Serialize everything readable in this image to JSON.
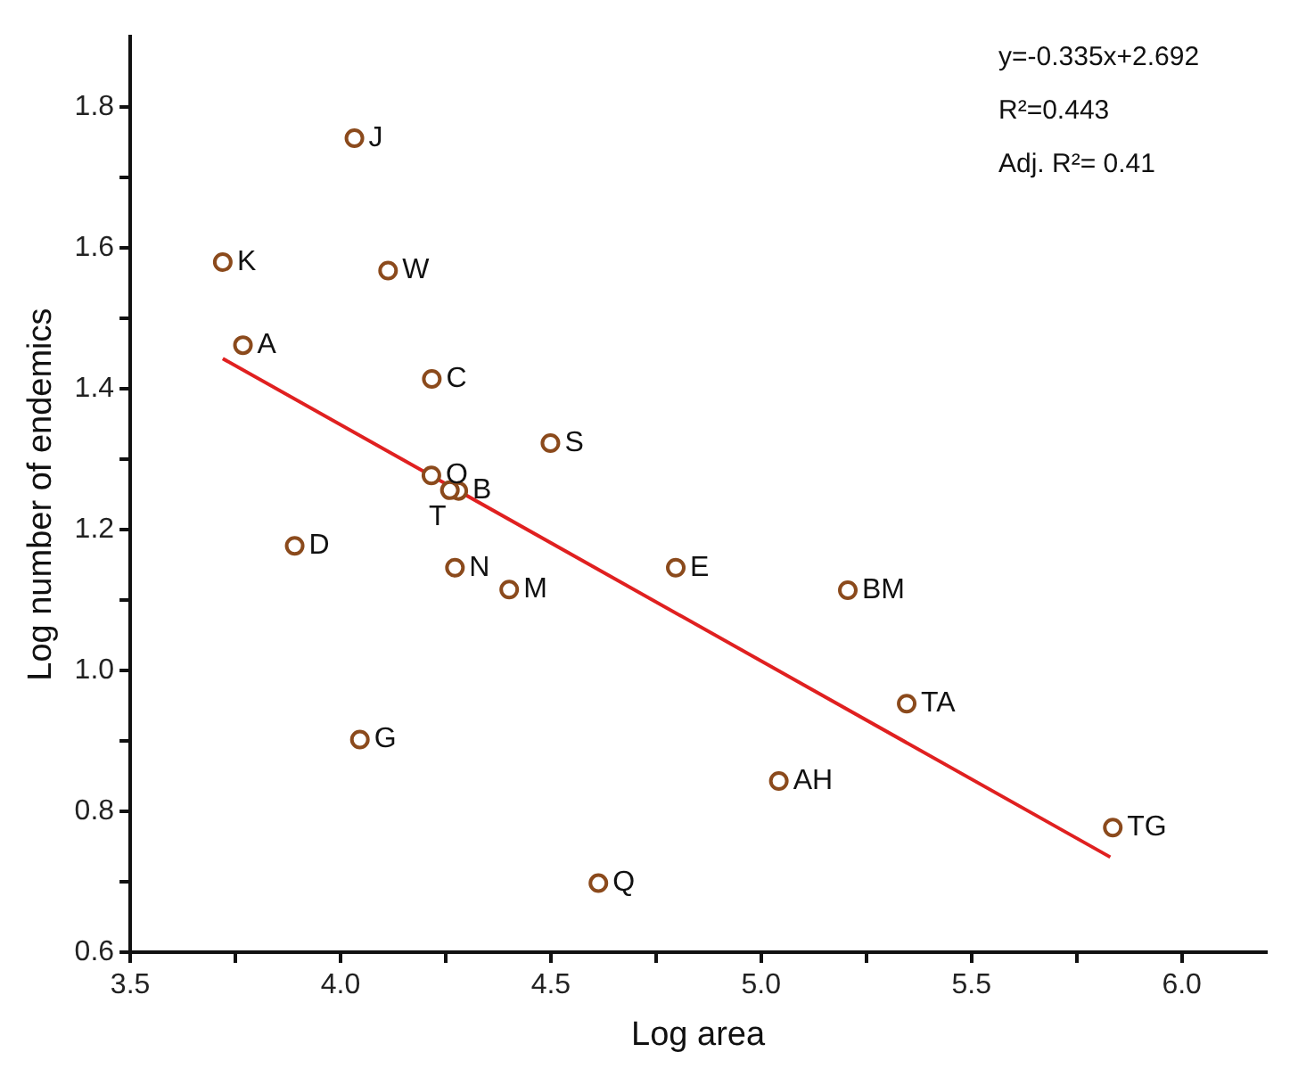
{
  "chart_data": {
    "type": "scatter",
    "xlabel": "Log area",
    "ylabel": "Log number of endemics",
    "xlim": [
      3.5,
      6.2
    ],
    "xticks": [
      3.5,
      {
        "value": 3.75,
        "label": null
      },
      {
        "value": 4,
        "label": "4.0"
      },
      {
        "value": 4.25,
        "label": null
      },
      4.5,
      {
        "value": 4.75,
        "label": null
      },
      {
        "value": 5,
        "label": "5.0"
      },
      {
        "value": 5.25,
        "label": null
      },
      5.5,
      {
        "value": 5.75,
        "label": null
      },
      {
        "value": 6,
        "label": "6.0"
      }
    ],
    "ylim": [
      0.6,
      1.9
    ],
    "yticks": [
      0.6,
      {
        "value": 0.7,
        "label": null
      },
      0.8,
      {
        "value": 0.9,
        "label": null
      },
      {
        "value": 1,
        "label": "1.0"
      },
      {
        "value": 1.1,
        "label": null
      },
      1.2,
      {
        "value": 1.3,
        "label": null
      },
      1.4,
      {
        "value": 1.5,
        "label": null
      },
      1.6,
      {
        "value": 1.7,
        "label": null
      },
      1.8
    ],
    "grid": false,
    "legend": false,
    "marker": "circle",
    "series": [
      {
        "color": "#8b4a1c",
        "x": [
          4.033,
          3.72,
          4.113,
          3.768,
          4.217,
          4.499,
          4.216,
          4.28,
          4.26,
          3.891,
          4.272,
          4.401,
          4.797,
          5.206,
          5.346,
          4.046,
          5.042,
          5.836,
          4.613
        ],
        "values": [
          1.756,
          1.58,
          1.568,
          1.462,
          1.414,
          1.323,
          1.277,
          1.255,
          1.256,
          1.177,
          1.146,
          1.115,
          1.146,
          1.114,
          0.953,
          0.902,
          0.843,
          0.777,
          0.698
        ]
      },
      {
        "type": "line",
        "color": "#e02020",
        "marker": "none",
        "line_style": "solid",
        "x": [
          3.72,
          5.83
        ],
        "values": [
          1.443,
          0.735
        ]
      }
    ],
    "annotations": [
      "y=-0.335x+2.692",
      "R²=0.443",
      "Adj. R²= 0.41",
      {
        "text": "J",
        "x": 4.033,
        "y": 1.756
      },
      {
        "text": "K",
        "x": 3.72,
        "y": 1.58
      },
      {
        "text": "W",
        "x": 4.113,
        "y": 1.568
      },
      {
        "text": "A",
        "x": 3.768,
        "y": 1.462
      },
      {
        "text": "C",
        "x": 4.217,
        "y": 1.414
      },
      {
        "text": "S",
        "x": 4.499,
        "y": 1.323
      },
      {
        "text": "O",
        "x": 4.216,
        "y": 1.277
      },
      {
        "text": "B",
        "x": 4.28,
        "y": 1.255
      },
      {
        "text": "T",
        "x": 4.26,
        "y": 1.256
      },
      {
        "text": "D",
        "x": 3.891,
        "y": 1.177
      },
      {
        "text": "N",
        "x": 4.272,
        "y": 1.146
      },
      {
        "text": "M",
        "x": 4.401,
        "y": 1.115
      },
      {
        "text": "E",
        "x": 4.797,
        "y": 1.146
      },
      {
        "text": "BM",
        "x": 5.206,
        "y": 1.114
      },
      {
        "text": "TA",
        "x": 5.346,
        "y": 0.953
      },
      {
        "text": "G",
        "x": 4.046,
        "y": 0.902
      },
      {
        "text": "AH",
        "x": 5.042,
        "y": 0.843
      },
      {
        "text": "TG",
        "x": 5.836,
        "y": 0.777
      },
      {
        "text": "Q",
        "x": 4.613,
        "y": 0.698
      }
    ]
  }
}
